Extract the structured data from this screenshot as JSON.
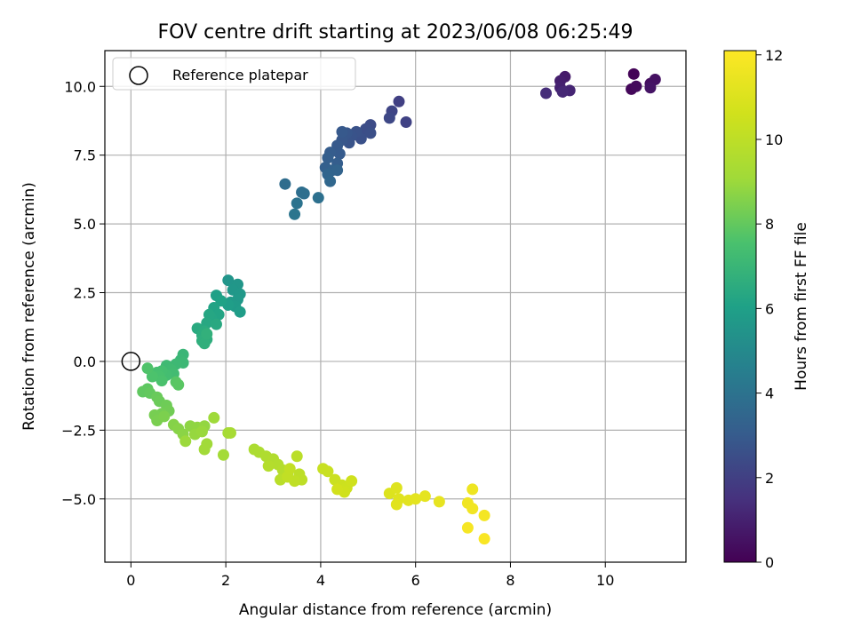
{
  "chart_data": {
    "type": "scatter",
    "title": "FOV centre drift starting at 2023/06/08 06:25:49",
    "xlabel": "Angular distance from reference (arcmin)",
    "ylabel": "Rotation from reference (arcmin)",
    "xlim": [
      -0.55,
      11.7
    ],
    "ylim": [
      -7.3,
      11.3
    ],
    "xticks": [
      0,
      2,
      4,
      6,
      8,
      10
    ],
    "yticks": [
      -5.0,
      -2.5,
      0.0,
      2.5,
      5.0,
      7.5,
      10.0
    ],
    "xtick_labels": [
      "0",
      "2",
      "4",
      "6",
      "8",
      "10"
    ],
    "ytick_labels": [
      "−5.0",
      "−2.5",
      "0.0",
      "2.5",
      "5.0",
      "7.5",
      "10.0"
    ],
    "grid": true,
    "legend": {
      "position": "upper-left",
      "label": "Reference platepar"
    },
    "reference_point": {
      "x": 0,
      "y": 0
    },
    "colorbar": {
      "label": "Hours from first FF file",
      "range": [
        0,
        12.1
      ],
      "ticks": [
        0,
        2,
        4,
        6,
        8,
        10,
        12
      ],
      "tick_labels": [
        "0",
        "2",
        "4",
        "6",
        "8",
        "10",
        "12"
      ],
      "colormap": "viridis"
    },
    "points": [
      [
        10.6,
        10.45,
        0.1
      ],
      [
        10.55,
        9.9,
        0.2
      ],
      [
        10.65,
        10.0,
        0.3
      ],
      [
        10.95,
        10.1,
        0.4
      ],
      [
        11.05,
        10.25,
        0.5
      ],
      [
        10.95,
        9.95,
        0.6
      ],
      [
        9.15,
        10.35,
        0.8
      ],
      [
        9.05,
        10.2,
        0.9
      ],
      [
        9.05,
        9.95,
        1.0
      ],
      [
        9.25,
        9.85,
        1.1
      ],
      [
        9.1,
        9.8,
        1.2
      ],
      [
        8.75,
        9.75,
        1.35
      ],
      [
        5.65,
        9.45,
        2.0
      ],
      [
        5.8,
        8.7,
        2.1
      ],
      [
        5.5,
        9.1,
        2.2
      ],
      [
        5.45,
        8.85,
        2.3
      ],
      [
        5.05,
        8.6,
        2.4
      ],
      [
        4.95,
        8.45,
        2.5
      ],
      [
        5.05,
        8.3,
        2.55
      ],
      [
        4.85,
        8.1,
        2.6
      ],
      [
        4.75,
        8.35,
        2.65
      ],
      [
        4.65,
        8.2,
        2.7
      ],
      [
        4.6,
        7.95,
        2.75
      ],
      [
        4.55,
        8.3,
        2.8
      ],
      [
        4.45,
        8.05,
        2.85
      ],
      [
        4.45,
        8.35,
        2.9
      ],
      [
        4.35,
        7.85,
        2.95
      ],
      [
        4.4,
        7.55,
        3.0
      ],
      [
        4.2,
        7.6,
        3.05
      ],
      [
        4.35,
        7.2,
        3.1
      ],
      [
        4.15,
        7.4,
        3.15
      ],
      [
        4.1,
        7.05,
        3.2
      ],
      [
        4.25,
        6.95,
        3.3
      ],
      [
        4.35,
        6.95,
        3.35
      ],
      [
        4.15,
        6.8,
        3.4
      ],
      [
        4.2,
        6.55,
        3.5
      ],
      [
        3.25,
        6.45,
        3.7
      ],
      [
        3.6,
        6.15,
        3.8
      ],
      [
        3.65,
        6.1,
        3.85
      ],
      [
        3.95,
        5.95,
        3.9
      ],
      [
        3.5,
        5.75,
        4.0
      ],
      [
        3.45,
        5.35,
        4.1
      ],
      [
        2.05,
        2.95,
        5.5
      ],
      [
        2.25,
        2.8,
        5.55
      ],
      [
        2.15,
        2.6,
        5.6
      ],
      [
        2.3,
        2.45,
        5.65
      ],
      [
        2.25,
        2.25,
        5.7
      ],
      [
        2.1,
        2.15,
        5.75
      ],
      [
        2.2,
        2.0,
        5.8
      ],
      [
        2.3,
        1.8,
        5.85
      ],
      [
        2.05,
        2.05,
        5.9
      ],
      [
        1.8,
        2.4,
        6.0
      ],
      [
        1.9,
        2.2,
        6.1
      ],
      [
        1.75,
        1.95,
        6.15
      ],
      [
        1.85,
        1.7,
        6.2
      ],
      [
        1.7,
        1.55,
        6.25
      ],
      [
        1.65,
        1.7,
        6.3
      ],
      [
        1.6,
        1.4,
        6.35
      ],
      [
        1.8,
        1.35,
        6.4
      ],
      [
        1.4,
        1.2,
        6.45
      ],
      [
        1.55,
        1.1,
        6.5
      ],
      [
        1.5,
        0.95,
        6.55
      ],
      [
        1.6,
        0.8,
        6.6
      ],
      [
        1.5,
        0.75,
        6.65
      ],
      [
        1.55,
        0.65,
        6.7
      ],
      [
        1.6,
        1.0,
        6.75
      ],
      [
        1.1,
        0.25,
        7.0
      ],
      [
        1.05,
        0.05,
        7.05
      ],
      [
        1.1,
        -0.05,
        7.1
      ],
      [
        0.95,
        -0.1,
        7.15
      ],
      [
        0.75,
        -0.15,
        7.2
      ],
      [
        0.85,
        -0.3,
        7.25
      ],
      [
        0.9,
        -0.45,
        7.3
      ],
      [
        0.75,
        -0.5,
        7.35
      ],
      [
        0.65,
        -0.35,
        7.4
      ],
      [
        0.55,
        -0.4,
        7.45
      ],
      [
        0.6,
        -0.55,
        7.5
      ],
      [
        0.65,
        -0.7,
        7.55
      ],
      [
        0.45,
        -0.55,
        7.6
      ],
      [
        0.35,
        -0.25,
        7.65
      ],
      [
        0.95,
        -0.75,
        7.8
      ],
      [
        1.0,
        -0.85,
        7.85
      ],
      [
        0.35,
        -1.0,
        7.9
      ],
      [
        0.25,
        -1.1,
        7.95
      ],
      [
        0.4,
        -1.15,
        8.0
      ],
      [
        0.55,
        -1.3,
        8.1
      ],
      [
        0.6,
        -1.45,
        8.15
      ],
      [
        0.75,
        -1.6,
        8.2
      ],
      [
        0.8,
        -1.8,
        8.25
      ],
      [
        0.65,
        -1.9,
        8.3
      ],
      [
        0.5,
        -1.95,
        8.35
      ],
      [
        0.55,
        -2.15,
        8.4
      ],
      [
        0.7,
        -2.0,
        8.45
      ],
      [
        0.9,
        -2.3,
        8.6
      ],
      [
        1.0,
        -2.45,
        8.65
      ],
      [
        1.1,
        -2.65,
        8.7
      ],
      [
        1.25,
        -2.35,
        8.75
      ],
      [
        1.4,
        -2.4,
        8.8
      ],
      [
        1.55,
        -2.35,
        8.85
      ],
      [
        1.35,
        -2.65,
        8.9
      ],
      [
        1.5,
        -2.55,
        8.95
      ],
      [
        1.15,
        -2.9,
        9.0
      ],
      [
        1.75,
        -2.05,
        9.05
      ],
      [
        1.6,
        -3.0,
        9.1
      ],
      [
        1.55,
        -3.2,
        9.15
      ],
      [
        1.95,
        -3.4,
        9.2
      ],
      [
        2.05,
        -2.6,
        9.25
      ],
      [
        2.1,
        -2.6,
        9.3
      ],
      [
        2.6,
        -3.2,
        9.45
      ],
      [
        2.7,
        -3.3,
        9.5
      ],
      [
        2.85,
        -3.45,
        9.55
      ],
      [
        3.0,
        -3.55,
        9.6
      ],
      [
        3.1,
        -3.75,
        9.65
      ],
      [
        2.9,
        -3.8,
        9.7
      ],
      [
        3.2,
        -3.95,
        9.75
      ],
      [
        3.3,
        -4.1,
        9.8
      ],
      [
        3.15,
        -4.3,
        9.85
      ],
      [
        3.5,
        -3.45,
        9.9
      ],
      [
        3.55,
        -4.1,
        9.95
      ],
      [
        3.6,
        -4.3,
        10.0
      ],
      [
        3.45,
        -4.35,
        10.05
      ],
      [
        3.3,
        -4.2,
        10.1
      ],
      [
        3.35,
        -3.9,
        10.15
      ],
      [
        4.05,
        -3.9,
        10.3
      ],
      [
        4.15,
        -4.0,
        10.35
      ],
      [
        4.3,
        -4.3,
        10.4
      ],
      [
        4.45,
        -4.5,
        10.45
      ],
      [
        4.55,
        -4.6,
        10.5
      ],
      [
        4.65,
        -4.35,
        10.55
      ],
      [
        4.5,
        -4.75,
        10.6
      ],
      [
        4.35,
        -4.65,
        10.65
      ],
      [
        5.45,
        -4.8,
        11.0
      ],
      [
        5.6,
        -4.6,
        11.05
      ],
      [
        5.65,
        -5.0,
        11.1
      ],
      [
        5.6,
        -5.2,
        11.15
      ],
      [
        5.85,
        -5.05,
        11.2
      ],
      [
        6.0,
        -5.0,
        11.25
      ],
      [
        6.2,
        -4.9,
        11.3
      ],
      [
        6.5,
        -5.1,
        11.35
      ],
      [
        7.2,
        -4.65,
        11.6
      ],
      [
        7.1,
        -5.15,
        11.65
      ],
      [
        7.2,
        -5.35,
        11.7
      ],
      [
        7.45,
        -5.6,
        11.8
      ],
      [
        7.1,
        -6.05,
        11.85
      ],
      [
        7.45,
        -6.45,
        11.95
      ]
    ]
  }
}
